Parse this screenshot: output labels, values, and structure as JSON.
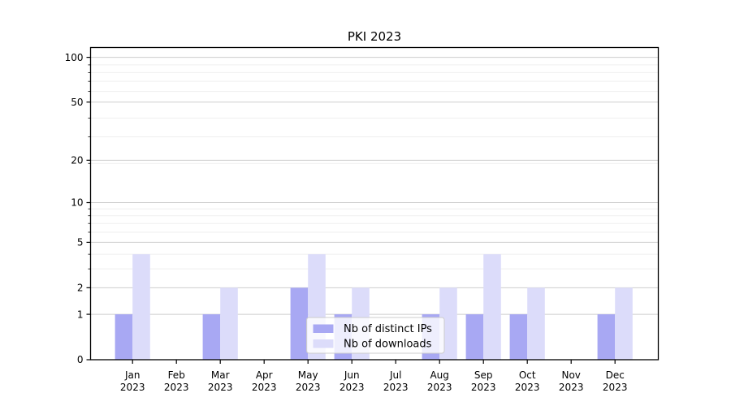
{
  "chart_data": {
    "type": "bar",
    "title": "PKI 2023",
    "categories": [
      "Jan 2023",
      "Feb 2023",
      "Mar 2023",
      "Apr 2023",
      "May 2023",
      "Jun 2023",
      "Jul 2023",
      "Aug 2023",
      "Sep 2023",
      "Oct 2023",
      "Nov 2023",
      "Dec 2023"
    ],
    "category_months": [
      "Jan",
      "Feb",
      "Mar",
      "Apr",
      "May",
      "Jun",
      "Jul",
      "Aug",
      "Sep",
      "Oct",
      "Nov",
      "Dec"
    ],
    "category_year": "2023",
    "series": [
      {
        "name": "Nb of distinct IPs",
        "color": "#a8a8f3",
        "values": [
          1,
          0,
          1,
          0,
          2,
          1,
          0,
          1,
          1,
          1,
          0,
          1
        ]
      },
      {
        "name": "Nb of downloads",
        "color": "#dcdcfa",
        "values": [
          4,
          0,
          2,
          0,
          4,
          2,
          0,
          2,
          4,
          2,
          0,
          2
        ]
      }
    ],
    "xlabel": "",
    "ylabel": "",
    "yscale": "log1p",
    "ytick_values": [
      0,
      1,
      2,
      5,
      10,
      20,
      50,
      100
    ],
    "ytick_labels": [
      "0",
      "1",
      "2",
      "5",
      "10",
      "20",
      "50",
      "100"
    ],
    "yminor_values": [
      3,
      4,
      6,
      7,
      8,
      9,
      19,
      29,
      39,
      59,
      69,
      79,
      89
    ],
    "ylim": [
      0,
      116
    ],
    "grid": true,
    "legend_position": "lower-center",
    "colors": {
      "background": "#ffffff",
      "spine": "#000000",
      "major_grid": "#cdcdcd",
      "minor_grid": "#efefef",
      "tick_text": "#000000",
      "legend_border": "#cccccc",
      "legend_background": "rgba(255,255,255,0.8)"
    }
  }
}
